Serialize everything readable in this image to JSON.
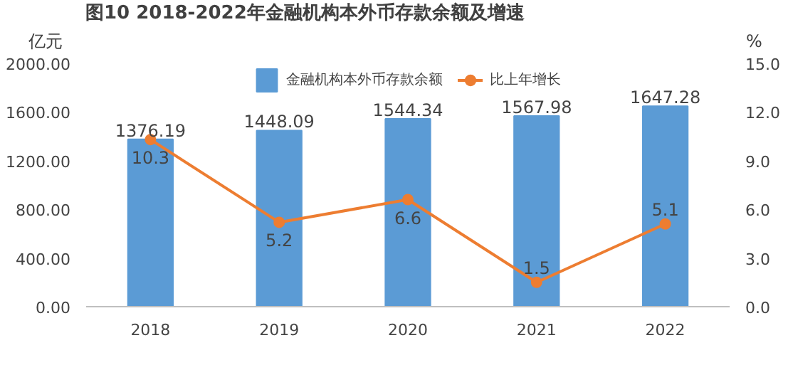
{
  "chart_data": {
    "type": "bar",
    "title": "图10  2018-2022年金融机构本外币存款余额及增速",
    "ylabel": "亿元",
    "y2label": "%",
    "categories": [
      "2018",
      "2019",
      "2020",
      "2021",
      "2022"
    ],
    "series": [
      {
        "name": "金融机构本外币存款余额",
        "color": "#5b9bd5",
        "values": [
          1376.19,
          1448.09,
          1544.34,
          1567.98,
          1647.28
        ]
      },
      {
        "name": "比上年增长",
        "type": "line",
        "axis": "y2",
        "color": "#ed7d31",
        "marker": "circle",
        "values": [
          10.3,
          5.2,
          6.6,
          1.5,
          5.1
        ]
      }
    ],
    "ylim": [
      0,
      2000
    ],
    "yticks": [
      {
        "value": 0,
        "label": "0.00"
      },
      {
        "value": 400,
        "label": "400.00"
      },
      {
        "value": 800,
        "label": "800.00"
      },
      {
        "value": 1200,
        "label": "1200.00"
      },
      {
        "value": 1600,
        "label": "1600.00"
      },
      {
        "value": 2000,
        "label": "2000.00"
      }
    ],
    "y2lim": [
      0,
      15
    ],
    "y2ticks": [
      {
        "value": 0,
        "label": "0.0"
      },
      {
        "value": 3,
        "label": "3.0"
      },
      {
        "value": 6,
        "label": "6.0"
      },
      {
        "value": 9,
        "label": "9.0"
      },
      {
        "value": 12,
        "label": "12.0"
      },
      {
        "value": 15,
        "label": "15.0"
      }
    ],
    "data_labels": true,
    "legend": "top",
    "grid": false
  }
}
